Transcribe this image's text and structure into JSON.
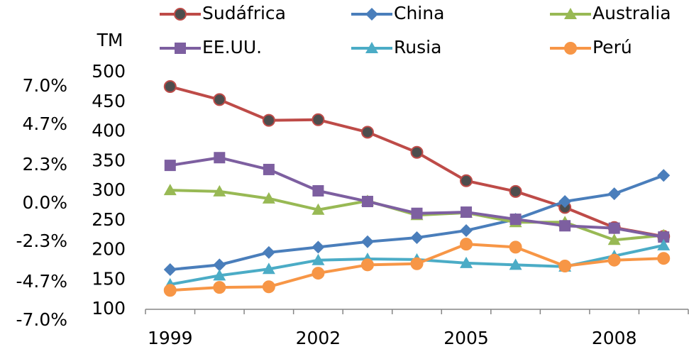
{
  "chart_data": {
    "type": "line",
    "y_label": "TM",
    "categories": [
      "1999",
      null,
      null,
      "2002",
      null,
      null,
      "2005",
      null,
      null,
      "2008",
      null
    ],
    "ylim": [
      100,
      500
    ],
    "yticks": [
      100,
      150,
      200,
      250,
      300,
      350,
      400,
      450,
      500
    ],
    "y2lim": [
      -7,
      7
    ],
    "y2ticks": [
      {
        "value": 7,
        "label": "7.0%"
      },
      {
        "value": 4.7,
        "label": "4.7%"
      },
      {
        "value": 2.3,
        "label": "2.3%"
      },
      {
        "value": 0,
        "label": "0.0%"
      },
      {
        "value": -2.3,
        "label": "-2.3%"
      },
      {
        "value": -4.7,
        "label": "-4.7%"
      },
      {
        "value": -7,
        "label": "-7.0%"
      }
    ],
    "legend": "top",
    "series": [
      {
        "name": "Sudáfrica",
        "color": "#be4b48",
        "marker": "circle",
        "values": [
          476,
          454,
          419,
          420,
          399,
          365,
          317,
          299,
          272,
          238,
          223
        ]
      },
      {
        "name": "China",
        "color": "#4a7ebb",
        "marker": "diamond",
        "values": [
          167,
          175,
          196,
          205,
          214,
          221,
          233,
          252,
          282,
          295,
          326
        ]
      },
      {
        "name": "Australia",
        "color": "#98b954",
        "marker": "triangle",
        "values": [
          301,
          299,
          287,
          268,
          283,
          259,
          263,
          247,
          247,
          217,
          225
        ]
      },
      {
        "name": "EE.UU.",
        "color": "#7d5fa0",
        "marker": "square",
        "values": [
          343,
          356,
          336,
          300,
          282,
          262,
          264,
          252,
          241,
          237,
          222
        ]
      },
      {
        "name": "Rusia",
        "color": "#4bacc6",
        "marker": "triangle",
        "values": [
          142,
          157,
          168,
          183,
          185,
          184,
          178,
          175,
          172,
          190,
          208
        ]
      },
      {
        "name": "Perú",
        "color": "#f79646",
        "marker": "circle",
        "values": [
          132,
          137,
          138,
          161,
          175,
          177,
          210,
          205,
          173,
          183,
          186
        ]
      }
    ]
  }
}
